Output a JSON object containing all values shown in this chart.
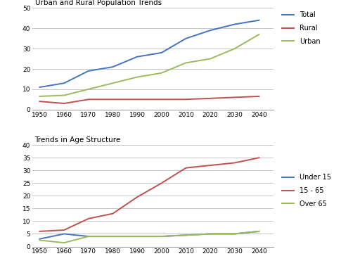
{
  "years": [
    1950,
    1960,
    1970,
    1980,
    1990,
    2000,
    2010,
    2020,
    2030,
    2040
  ],
  "chart1": {
    "title": "Urban and Rural Population Trends",
    "total": [
      11,
      13,
      19,
      21,
      26,
      28,
      35,
      39,
      42,
      44
    ],
    "rural": [
      4,
      3,
      5,
      5,
      5,
      5,
      5,
      5.5,
      6,
      6.5
    ],
    "urban": [
      6.5,
      7,
      10,
      13,
      16,
      18,
      23,
      25,
      30,
      37
    ],
    "colors": {
      "total": "#4472C4",
      "rural": "#C0504D",
      "urban": "#9BBB59"
    },
    "ylim": [
      0,
      50
    ],
    "yticks": [
      0,
      10,
      20,
      30,
      40,
      50
    ],
    "legend_labels": [
      "Total",
      "Rural",
      "Urban"
    ]
  },
  "chart2": {
    "title": "Trends in Age Structure",
    "under15": [
      3,
      5,
      4,
      4,
      4,
      4,
      4.5,
      5,
      5,
      6
    ],
    "age1565": [
      6,
      6.5,
      11,
      13,
      19.5,
      25,
      31,
      32,
      33,
      35
    ],
    "over65": [
      2.5,
      1.5,
      4,
      4,
      4,
      4,
      4.5,
      5,
      5,
      6
    ],
    "colors": {
      "under15": "#4472C4",
      "age1565": "#C0504D",
      "over65": "#9BBB59"
    },
    "ylim": [
      0,
      40
    ],
    "yticks": [
      0,
      5,
      10,
      15,
      20,
      25,
      30,
      35,
      40
    ],
    "legend_labels": [
      "Under 15",
      "15 - 65",
      "Over 65"
    ]
  },
  "xlabel_years": [
    1950,
    1960,
    1970,
    1980,
    1990,
    2000,
    2010,
    2020,
    2030,
    2040
  ],
  "background_color": "#FFFFFF",
  "grid_color": "#BBBBBB",
  "line_width": 1.4
}
